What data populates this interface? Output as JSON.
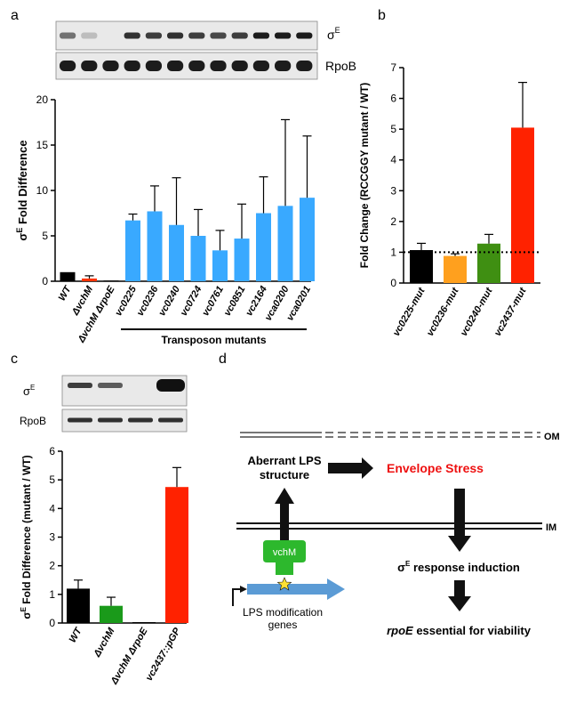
{
  "panel_labels": {
    "a": "a",
    "b": "b",
    "c": "c",
    "d": "d"
  },
  "blot_labels": {
    "sigma": "σ",
    "sup": "E",
    "rpob": "RpoB"
  },
  "chart_data": [
    {
      "panel": "a",
      "type": "bar",
      "ylabel_prefix": "σ",
      "ylabel_sup": "E",
      "ylabel_suffix": " Fold Difference",
      "ylim": [
        0,
        20
      ],
      "yticks": [
        0,
        5,
        10,
        15,
        20
      ],
      "grid": false,
      "categories": [
        "WT",
        "ΔvchM",
        "ΔvchM ΔrpoE",
        "vc0225",
        "vc0236",
        "vc0240",
        "vc0724",
        "vc0761",
        "vc0851",
        "vc2164",
        "vca0200",
        "vca0201"
      ],
      "values": [
        1.0,
        0.3,
        0.0,
        6.7,
        7.7,
        6.2,
        5.0,
        3.4,
        4.7,
        7.5,
        8.3,
        9.2
      ],
      "errors": [
        0.0,
        0.3,
        0.0,
        0.7,
        2.8,
        5.2,
        2.9,
        2.2,
        3.8,
        4.0,
        9.5,
        6.8
      ],
      "colors": [
        "#000000",
        "#ff3300",
        "#000000",
        "#39a9ff",
        "#39a9ff",
        "#39a9ff",
        "#39a9ff",
        "#39a9ff",
        "#39a9ff",
        "#39a9ff",
        "#39a9ff",
        "#39a9ff"
      ],
      "group_label": "Transposon mutants"
    },
    {
      "panel": "b",
      "type": "bar",
      "ylabel": "Fold Change (RCCGGY mutant / WT)",
      "ylim": [
        0,
        7
      ],
      "yticks": [
        0,
        1,
        2,
        3,
        4,
        5,
        6,
        7
      ],
      "grid": false,
      "reference_line": 1,
      "categories": [
        "vc0225-mut",
        "vc0236-mut",
        "vc0240-mut",
        "vc2437-mut"
      ],
      "values": [
        1.07,
        0.88,
        1.28,
        5.05
      ],
      "errors": [
        0.22,
        0.07,
        0.3,
        1.47
      ],
      "colors": [
        "#000000",
        "#ffa01e",
        "#3f8f12",
        "#ff2200"
      ]
    },
    {
      "panel": "c",
      "type": "bar",
      "ylabel_prefix": "σ",
      "ylabel_sup": "E",
      "ylabel_suffix": " Fold Difference (mutant / WT)",
      "ylim": [
        0,
        6
      ],
      "yticks": [
        0,
        1,
        2,
        3,
        4,
        5,
        6
      ],
      "grid": false,
      "categories": [
        "WT",
        "ΔvchM",
        "ΔvchM ΔrpoE",
        "vc2437::pGP"
      ],
      "values": [
        1.2,
        0.6,
        0.03,
        4.75
      ],
      "errors": [
        0.3,
        0.3,
        0.0,
        0.68
      ],
      "colors": [
        "#000000",
        "#1a9a1a",
        "#000000",
        "#ff2200"
      ]
    }
  ],
  "diagram": {
    "om": "OM",
    "im": "IM",
    "aberrant_1": "Aberrant LPS",
    "aberrant_2": "structure",
    "stress": "Envelope Stress",
    "sigma_prefix": "σ",
    "sigma_sup": "E",
    "sigma_suffix": " response induction",
    "rpoe_italic": "rpoE",
    "rpoe_rest": " essential for viability",
    "vchm": "vchM",
    "lps_1": "LPS modification",
    "lps_2": "genes",
    "colors": {
      "stress": "#ee1111",
      "vchm": "#2db82d",
      "gene": "#5b9bd5",
      "star": "#ffe033"
    }
  }
}
